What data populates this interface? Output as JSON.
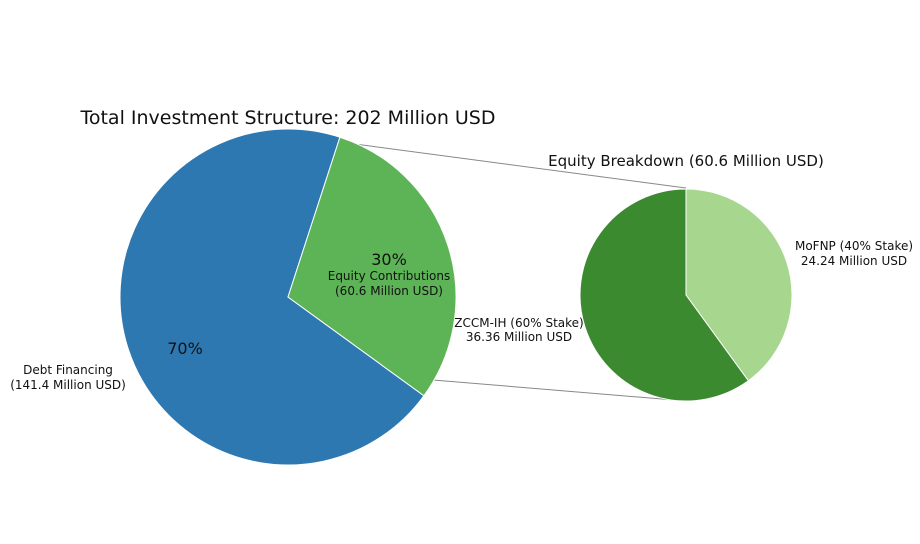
{
  "chart_data": [
    {
      "type": "pie",
      "title": "Total Investment Structure: 202 Million USD",
      "slices": [
        {
          "label_line1": "Debt Financing",
          "label_line2": "(141.4 Million USD)",
          "value": 141.4,
          "percent_label": "70%",
          "color": "#2e78b2"
        },
        {
          "label_line1": "Equity Contributions",
          "label_line2": "(60.6 Million USD)",
          "value": 60.6,
          "percent_label": "30%",
          "color": "#5db456"
        }
      ]
    },
    {
      "type": "pie",
      "title": "Equity Breakdown (60.6 Million USD)",
      "slices": [
        {
          "label_line1": "MoFNP (40% Stake)",
          "label_line2": "24.24 Million USD",
          "value": 24.24,
          "color": "#a7d68e"
        },
        {
          "label_line1": "ZCCM-IH (60% Stake)",
          "label_line2": "36.36 Million USD",
          "value": 36.36,
          "color": "#3c8a30"
        }
      ]
    }
  ]
}
